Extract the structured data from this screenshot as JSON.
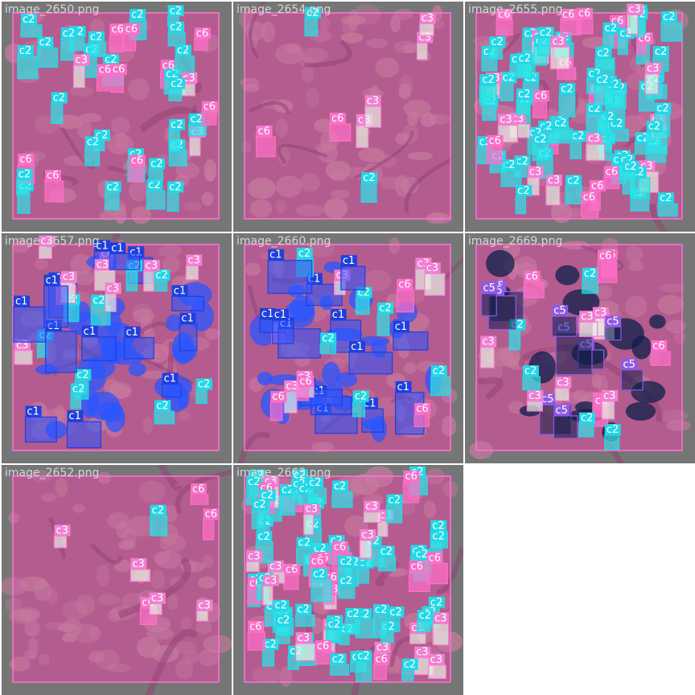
{
  "grid": {
    "tiles": [
      {
        "filename": "image_2650.png",
        "tissue": "mixed"
      },
      {
        "filename": "image_2654.png",
        "tissue": "acinar"
      },
      {
        "filename": "image_2655.png",
        "tissue": "dense"
      },
      {
        "filename": "image_2657.png",
        "tissue": "stroma-blue"
      },
      {
        "filename": "image_2660.png",
        "tissue": "blue"
      },
      {
        "filename": "image_2669.png",
        "tissue": "navy"
      },
      {
        "filename": "image_2652.png",
        "tissue": "acinar"
      },
      {
        "filename": "image_2663.png",
        "tissue": "dense"
      }
    ]
  },
  "classes": {
    "c1": {
      "label": "c1",
      "color": "#1f3fe0",
      "fill": "#2a55ff"
    },
    "c2": {
      "label": "c2",
      "color": "#22d8e8",
      "fill": "#2ee6e6"
    },
    "c3": {
      "label": "c3",
      "color": "#f47fd1",
      "fill": "#e8f0e4"
    },
    "c5": {
      "label": "c5",
      "color": "#8e5ae8",
      "fill": "#0e1f4a"
    },
    "c6": {
      "label": "c6",
      "color": "#ff6fc8",
      "fill": "#ff6fc8"
    }
  },
  "colors": {
    "background": "#767676",
    "tissue": "#b45c8e",
    "tissue_light": "#c87aa0",
    "frame": "#ff74d6"
  }
}
